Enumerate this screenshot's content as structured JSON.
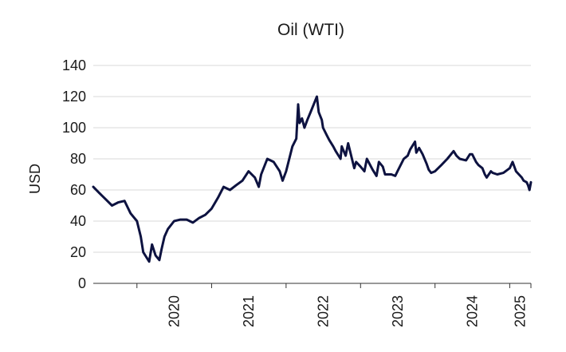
{
  "chart_data": {
    "type": "line",
    "title": "Oil (WTI)",
    "xlabel": "",
    "ylabel": "USD",
    "ylim": [
      0,
      140
    ],
    "yticks": [
      0,
      20,
      40,
      60,
      80,
      100,
      120,
      140
    ],
    "xlim": [
      "2019-06-01",
      "2025-04-15"
    ],
    "xtick_labels": [
      "2020",
      "2021",
      "2022",
      "2023",
      "2024",
      "2025"
    ],
    "grid": "horizontal",
    "colors": {
      "line": "#0d1240",
      "grid": "#d9d9d9",
      "text": "#1a1a1a"
    },
    "series": [
      {
        "x": [
          "2019-06-01",
          "2019-07-01",
          "2019-08-01",
          "2019-09-01",
          "2019-10-01",
          "2019-11-01",
          "2019-12-01",
          "2020-01-01",
          "2020-01-20",
          "2020-02-01",
          "2020-03-01",
          "2020-03-15",
          "2020-04-01",
          "2020-04-20",
          "2020-05-01",
          "2020-05-15",
          "2020-06-01",
          "2020-07-01",
          "2020-08-01",
          "2020-09-01",
          "2020-10-01",
          "2020-11-01",
          "2020-12-01",
          "2021-01-01",
          "2021-02-01",
          "2021-03-01",
          "2021-04-01",
          "2021-05-01",
          "2021-06-01",
          "2021-07-01",
          "2021-08-01",
          "2021-08-20",
          "2021-09-01",
          "2021-10-01",
          "2021-11-01",
          "2021-12-01",
          "2021-12-15",
          "2022-01-01",
          "2022-02-01",
          "2022-02-20",
          "2022-03-01",
          "2022-03-08",
          "2022-03-20",
          "2022-04-01",
          "2022-04-15",
          "2022-05-01",
          "2022-06-01",
          "2022-06-10",
          "2022-06-25",
          "2022-07-01",
          "2022-07-20",
          "2022-08-01",
          "2022-08-20",
          "2022-09-01",
          "2022-09-25",
          "2022-10-01",
          "2022-10-20",
          "2022-11-01",
          "2022-11-20",
          "2022-12-01",
          "2022-12-10",
          "2023-01-01",
          "2023-01-20",
          "2023-02-01",
          "2023-03-01",
          "2023-03-20",
          "2023-04-01",
          "2023-04-20",
          "2023-05-01",
          "2023-06-01",
          "2023-06-20",
          "2023-07-01",
          "2023-08-01",
          "2023-08-20",
          "2023-09-01",
          "2023-09-25",
          "2023-10-01",
          "2023-10-15",
          "2023-11-01",
          "2023-11-20",
          "2023-12-01",
          "2023-12-13",
          "2024-01-01",
          "2024-02-01",
          "2024-03-01",
          "2024-04-01",
          "2024-04-15",
          "2024-05-01",
          "2024-06-01",
          "2024-06-20",
          "2024-07-01",
          "2024-07-20",
          "2024-08-01",
          "2024-08-20",
          "2024-09-01",
          "2024-09-10",
          "2024-10-01",
          "2024-10-10",
          "2024-11-01",
          "2024-12-01",
          "2025-01-01",
          "2025-01-15",
          "2025-02-01",
          "2025-03-01",
          "2025-03-10",
          "2025-03-25",
          "2025-04-01",
          "2025-04-08",
          "2025-04-15"
        ],
        "y": [
          62,
          58,
          54,
          50,
          52,
          53,
          45,
          40,
          30,
          20,
          14,
          25,
          18,
          15,
          22,
          30,
          35,
          40,
          41,
          41,
          39,
          42,
          44,
          48,
          55,
          62,
          60,
          63,
          66,
          72,
          68,
          62,
          70,
          80,
          78,
          72,
          66,
          72,
          88,
          93,
          115,
          103,
          106,
          100,
          105,
          110,
          120,
          110,
          105,
          100,
          95,
          92,
          88,
          85,
          80,
          88,
          82,
          90,
          80,
          74,
          78,
          75,
          72,
          80,
          73,
          69,
          78,
          75,
          70,
          70,
          69,
          72,
          80,
          82,
          86,
          91,
          84,
          87,
          83,
          77,
          73,
          71,
          72,
          76,
          80,
          85,
          82,
          80,
          79,
          83,
          83,
          78,
          76,
          74,
          70,
          68,
          72,
          71,
          70,
          71,
          74,
          78,
          72,
          68,
          66,
          65,
          63,
          60,
          65
        ]
      }
    ]
  }
}
